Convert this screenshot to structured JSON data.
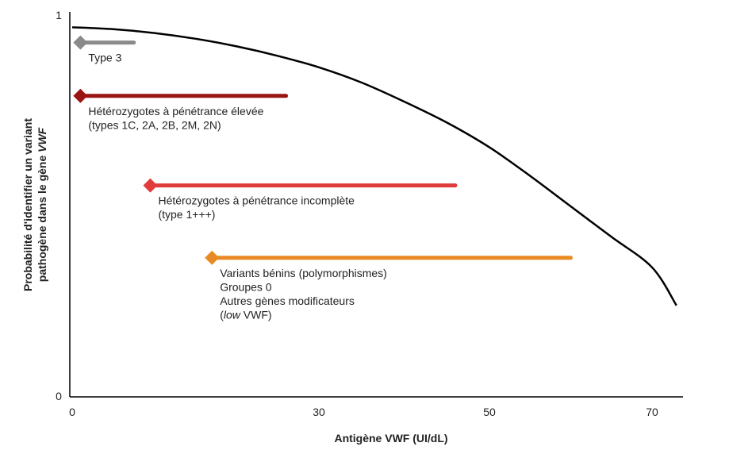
{
  "chart_data": {
    "type": "line",
    "xlabel": "Antigène VWF (UI/dL)",
    "ylabel_line1": "Probabilité d'identifier un variant",
    "ylabel_line2_prefix": "pathogène dans le gène ",
    "ylabel_line2_italic": "VWF",
    "x_ticks": [
      "0",
      "30",
      "50",
      "70"
    ],
    "y_ticks": [
      "0",
      "1"
    ],
    "curve": {
      "color": "#000000",
      "points": [
        [
          0,
          0.97
        ],
        [
          5,
          0.965
        ],
        [
          10,
          0.955
        ],
        [
          15,
          0.94
        ],
        [
          20,
          0.92
        ],
        [
          25,
          0.895
        ],
        [
          30,
          0.865
        ],
        [
          35,
          0.825
        ],
        [
          40,
          0.775
        ],
        [
          45,
          0.72
        ],
        [
          50,
          0.655
        ],
        [
          55,
          0.58
        ],
        [
          60,
          0.5
        ],
        [
          65,
          0.42
        ],
        [
          70,
          0.34
        ],
        [
          73,
          0.24
        ]
      ]
    },
    "bands": [
      {
        "name": "type3",
        "color": "#8a8a8a",
        "start": [
          1,
          0.93
        ],
        "end": [
          7.5,
          0.93
        ],
        "label_lines": [
          {
            "text": "Type 3"
          }
        ]
      },
      {
        "name": "high-penetrance",
        "color": "#9b1414",
        "start": [
          1,
          0.79
        ],
        "end": [
          26,
          0.79
        ],
        "label_lines": [
          {
            "text": "Hétérozygotes à pénétrance élevée"
          },
          {
            "text": "(types 1C, 2A, 2B, 2M, 2N)"
          }
        ]
      },
      {
        "name": "incomplete-penetrance",
        "color": "#e03c3c",
        "start": [
          9.5,
          0.555
        ],
        "end": [
          46,
          0.555
        ],
        "label_lines": [
          {
            "text": "Hétérozygotes à pénétrance incomplète"
          },
          {
            "text": "(type 1+++)"
          }
        ]
      },
      {
        "name": "benign",
        "color": "#e98a25",
        "start": [
          17,
          0.365
        ],
        "end": [
          60,
          0.365
        ],
        "label_lines": [
          {
            "text": "Variants bénins (polymorphismes)"
          },
          {
            "text": "Groupes 0"
          },
          {
            "text": "Autres gènes modificateurs"
          },
          {
            "text": "",
            "italic": "low",
            "rest": " VWF)",
            "prefix": "("
          }
        ]
      }
    ]
  }
}
